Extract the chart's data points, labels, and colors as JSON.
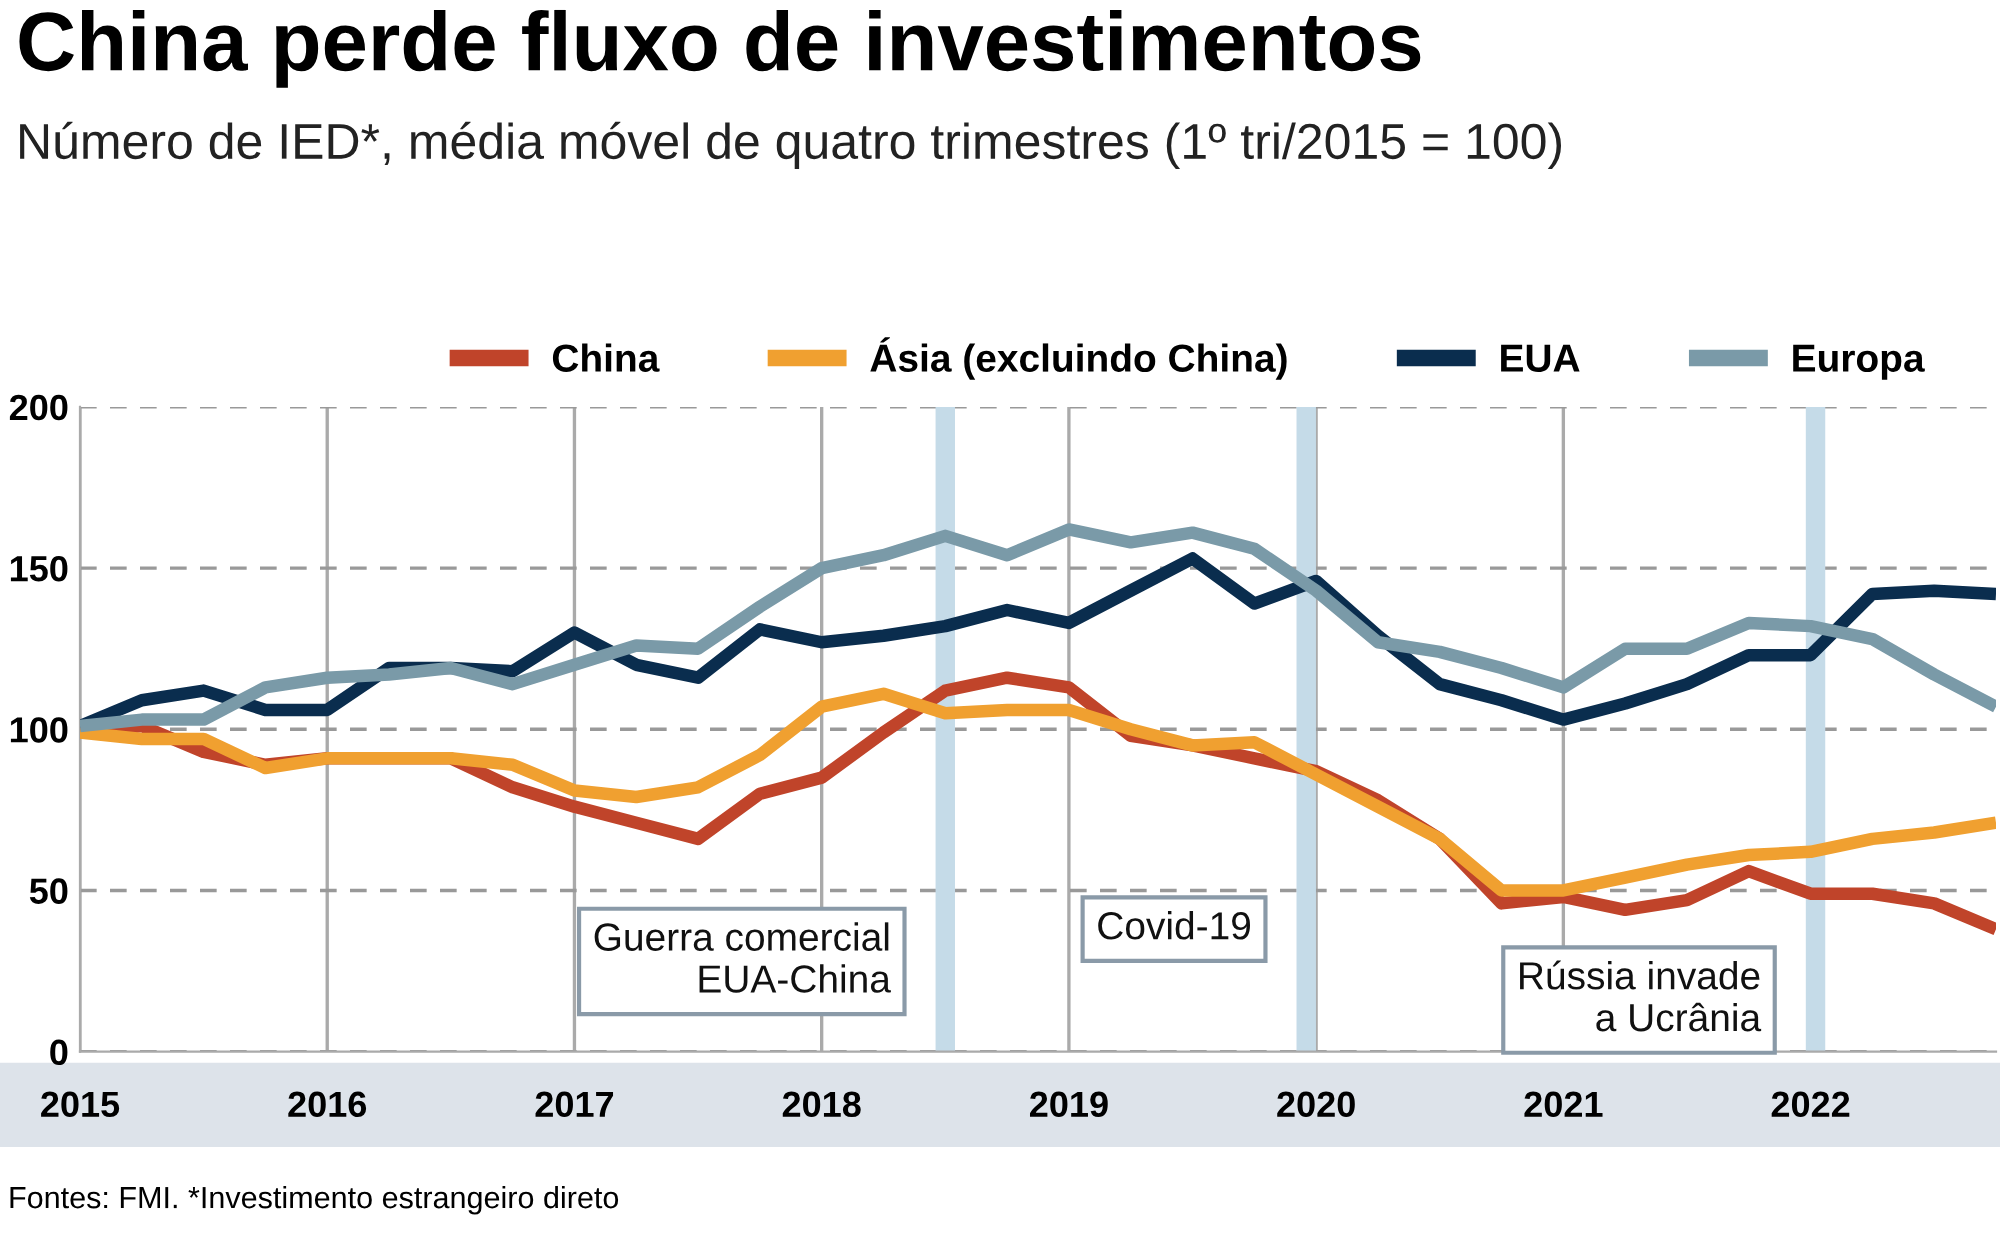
{
  "chart_data": {
    "type": "line",
    "title": "China perde fluxo de investimentos",
    "subtitle": "Número de IED*, média móvel de quatro trimestres (1º tri/2015 = 100)",
    "x": [
      2015.0,
      2015.25,
      2015.5,
      2015.75,
      2016.0,
      2016.25,
      2016.5,
      2016.75,
      2017.0,
      2017.25,
      2017.5,
      2017.75,
      2018.0,
      2018.25,
      2018.5,
      2018.75,
      2019.0,
      2019.25,
      2019.5,
      2019.75,
      2020.0,
      2020.25,
      2020.5,
      2020.75,
      2021.0,
      2021.25,
      2021.5,
      2021.75,
      2022.0,
      2022.25,
      2022.5,
      2022.75
    ],
    "series": [
      {
        "name": "China",
        "color": "#c0442a",
        "values": [
          99,
          101,
          93,
          89,
          91,
          91,
          91,
          82,
          76,
          71,
          66,
          80,
          85,
          99,
          112,
          116,
          113,
          98,
          95,
          91,
          87,
          78,
          66,
          46,
          48,
          44,
          47,
          56,
          49,
          49,
          46,
          38
        ]
      },
      {
        "name": "Ásia (excluindo China)",
        "color": "#f0a030",
        "values": [
          99,
          97,
          97,
          88,
          91,
          91,
          91,
          89,
          81,
          79,
          82,
          92,
          107,
          111,
          105,
          106,
          106,
          100,
          95,
          96,
          86,
          76,
          66,
          50,
          50,
          54,
          58,
          61,
          62,
          66,
          68,
          71
        ]
      },
      {
        "name": "EUA",
        "color": "#0a2d4e",
        "values": [
          101,
          109,
          112,
          106,
          106,
          119,
          119,
          118,
          130,
          120,
          116,
          131,
          127,
          129,
          132,
          137,
          133,
          143,
          153,
          139,
          146,
          129,
          114,
          109,
          103,
          108,
          114,
          123,
          123,
          142,
          143,
          142
        ]
      },
      {
        "name": "Europa",
        "color": "#7a9aa8",
        "values": [
          101,
          103,
          103,
          113,
          116,
          117,
          119,
          114,
          120,
          126,
          125,
          138,
          150,
          154,
          160,
          154,
          162,
          158,
          161,
          156,
          143,
          127,
          124,
          119,
          113,
          125,
          125,
          133,
          132,
          128,
          117,
          107
        ]
      }
    ],
    "xlim": [
      2015,
      2022.75
    ],
    "xticks": [
      2015,
      2016,
      2017,
      2018,
      2019,
      2020,
      2021,
      2022
    ],
    "ylim": [
      0,
      200
    ],
    "yticks": [
      0,
      50,
      100,
      150,
      200
    ],
    "grid": true,
    "legend": "top",
    "line_style": "solid",
    "ref_lines": [
      {
        "axis": "x",
        "value": 2018.5,
        "label": "Guerra comercial\nEUA-China",
        "color": "#c5dbe8"
      },
      {
        "axis": "x",
        "value": 2019.96,
        "label": "Covid-19",
        "color": "#c5dbe8"
      },
      {
        "axis": "x",
        "value": 2022.02,
        "label": "Rússia invade\na Ucrânia",
        "color": "#c5dbe8"
      }
    ],
    "annotations": [
      "Fontes: FMI. *Investimento estrangeiro direto"
    ]
  }
}
